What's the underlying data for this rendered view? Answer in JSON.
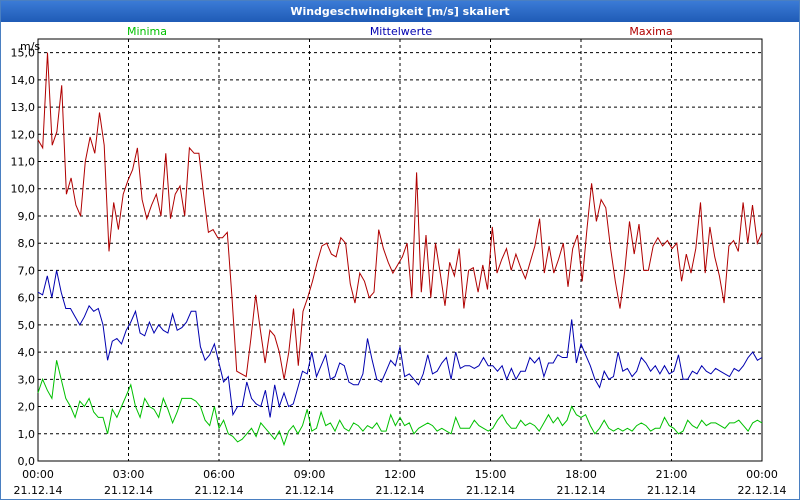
{
  "window": {
    "title": "Windgeschwindigkeit [m/s] skaliert"
  },
  "colors": {
    "minima": "#00c000",
    "mittelwerte": "#0000b0",
    "maxima": "#b00000",
    "grid": "#000000",
    "title_bg": "#2a66c4"
  },
  "chart_data": {
    "type": "line",
    "title": "Windgeschwindigkeit [m/s] skaliert",
    "ylabel": "m/s",
    "ylim": [
      0,
      15.5
    ],
    "y_ticks": [
      "0,0",
      "1,0",
      "2,0",
      "3,0",
      "4,0",
      "5,0",
      "6,0",
      "7,0",
      "8,0",
      "9,0",
      "10,0",
      "11,0",
      "12,0",
      "13,0",
      "14,0",
      "15,0"
    ],
    "xlim": [
      0,
      24
    ],
    "x_ticks": [
      {
        "time": "00:00",
        "date": "21.12.14",
        "h": 0
      },
      {
        "time": "03:00",
        "date": "21.12.14",
        "h": 3
      },
      {
        "time": "06:00",
        "date": "21.12.14",
        "h": 6
      },
      {
        "time": "09:00",
        "date": "21.12.14",
        "h": 9
      },
      {
        "time": "12:00",
        "date": "21.12.14",
        "h": 12
      },
      {
        "time": "15:00",
        "date": "21.12.14",
        "h": 15
      },
      {
        "time": "18:00",
        "date": "21.12.14",
        "h": 18
      },
      {
        "time": "21:00",
        "date": "21.12.14",
        "h": 21
      },
      {
        "time": "00:00",
        "date": "22.12.14",
        "h": 24
      }
    ],
    "legend": [
      "Minima",
      "Mittelwerte",
      "Maxima"
    ],
    "series": [
      {
        "name": "Maxima",
        "values": [
          11.8,
          11.5,
          15.0,
          11.6,
          12.1,
          13.8,
          9.8,
          10.4,
          9.4,
          9.0,
          11.0,
          11.9,
          11.3,
          12.8,
          11.6,
          7.7,
          9.5,
          8.5,
          9.8,
          10.3,
          10.7,
          11.5,
          9.6,
          8.9,
          9.4,
          9.8,
          9.0,
          11.3,
          8.9,
          9.8,
          10.1,
          9.0,
          11.5,
          11.3,
          11.3,
          9.8,
          8.4,
          8.5,
          8.2,
          8.2,
          8.4,
          6.0,
          3.3,
          3.2,
          3.1,
          4.5,
          6.1,
          4.8,
          3.6,
          4.8,
          4.6,
          4.0,
          3.0,
          4.0,
          5.6,
          3.5,
          5.5,
          6.0,
          6.6,
          7.3,
          7.9,
          8.0,
          7.6,
          7.5,
          8.2,
          8.0,
          6.5,
          5.8,
          6.9,
          6.6,
          6.0,
          6.2,
          8.5,
          7.8,
          7.3,
          6.9,
          7.2,
          7.5,
          8.0,
          6.0,
          10.6,
          6.2,
          8.3,
          6.0,
          8.0,
          6.9,
          5.7,
          7.3,
          6.8,
          7.8,
          5.6,
          7.0,
          7.1,
          6.2,
          7.2,
          6.3,
          8.6,
          6.9,
          7.4,
          7.8,
          7.0,
          7.6,
          7.1,
          6.7,
          7.3,
          7.9,
          8.9,
          6.9,
          7.9,
          6.9,
          7.4,
          8.0,
          6.4,
          7.8,
          8.3,
          6.6,
          8.5,
          10.2,
          8.8,
          9.6,
          9.3,
          7.8,
          6.6,
          5.6,
          7.0,
          8.8,
          7.6,
          8.7,
          7.0,
          7.0,
          7.9,
          8.2,
          7.9,
          8.1,
          7.8,
          8.0,
          6.6,
          7.6,
          6.9,
          7.8,
          9.5,
          6.9,
          8.6,
          7.5,
          6.8,
          5.8,
          7.9,
          8.1,
          7.7,
          9.5,
          8.0,
          9.4,
          8.0,
          8.4
        ]
      },
      {
        "name": "Mittelwerte",
        "values": [
          6.2,
          6.1,
          6.8,
          6.0,
          7.0,
          6.2,
          5.6,
          5.6,
          5.3,
          5.0,
          5.3,
          5.7,
          5.5,
          5.6,
          5.0,
          3.7,
          4.4,
          4.5,
          4.3,
          4.8,
          5.1,
          5.5,
          4.7,
          4.6,
          5.1,
          4.7,
          5.0,
          4.8,
          4.7,
          5.4,
          4.8,
          4.9,
          5.1,
          5.5,
          5.5,
          4.2,
          3.7,
          3.9,
          4.3,
          3.6,
          2.9,
          3.1,
          1.7,
          2.0,
          2.0,
          2.9,
          2.3,
          2.1,
          2.0,
          2.6,
          1.6,
          2.8,
          2.0,
          2.5,
          2.0,
          2.1,
          2.7,
          3.3,
          3.2,
          4.0,
          3.1,
          3.5,
          3.9,
          3.0,
          3.1,
          3.6,
          3.5,
          2.9,
          2.8,
          2.8,
          3.2,
          4.5,
          3.7,
          3.0,
          2.9,
          3.3,
          3.7,
          3.5,
          4.2,
          3.1,
          3.2,
          3.0,
          2.8,
          3.2,
          3.9,
          3.2,
          3.3,
          3.6,
          3.8,
          3.0,
          4.0,
          3.4,
          3.5,
          3.5,
          3.4,
          3.5,
          3.8,
          3.5,
          3.5,
          3.3,
          3.5,
          3.0,
          3.4,
          3.0,
          3.3,
          3.3,
          3.8,
          3.6,
          3.8,
          3.1,
          3.6,
          3.6,
          3.9,
          3.8,
          3.8,
          5.2,
          3.6,
          4.3,
          3.9,
          3.5,
          3.0,
          2.7,
          3.3,
          3.0,
          3.1,
          4.0,
          3.3,
          3.4,
          3.1,
          3.3,
          3.8,
          3.6,
          3.3,
          3.5,
          3.2,
          3.5,
          3.2,
          3.3,
          3.9,
          3.0,
          3.0,
          3.3,
          3.2,
          3.5,
          3.3,
          3.2,
          3.4,
          3.3,
          3.2,
          3.1,
          3.4,
          3.3,
          3.5,
          3.8,
          4.0,
          3.7,
          3.8
        ]
      },
      {
        "name": "Minima",
        "values": [
          2.5,
          3.0,
          2.6,
          2.3,
          3.7,
          3.0,
          2.3,
          2.0,
          1.6,
          2.2,
          2.0,
          2.3,
          1.8,
          1.6,
          1.6,
          1.0,
          1.9,
          1.6,
          2.0,
          2.4,
          2.8,
          2.0,
          1.6,
          2.3,
          2.0,
          1.9,
          1.6,
          2.3,
          1.9,
          1.4,
          1.8,
          2.3,
          2.3,
          2.3,
          2.2,
          2.0,
          1.5,
          1.3,
          2.0,
          1.2,
          1.5,
          1.0,
          0.9,
          0.7,
          0.8,
          1.0,
          1.2,
          0.9,
          1.4,
          1.2,
          1.0,
          0.8,
          1.1,
          0.6,
          1.1,
          1.3,
          1.0,
          1.3,
          1.9,
          1.1,
          1.2,
          1.8,
          1.3,
          1.4,
          1.1,
          1.5,
          1.2,
          1.1,
          1.4,
          1.3,
          1.1,
          1.3,
          1.2,
          1.4,
          1.1,
          1.1,
          1.7,
          1.3,
          1.6,
          1.3,
          1.4,
          1.0,
          1.2,
          1.3,
          1.4,
          1.3,
          1.1,
          1.2,
          1.1,
          1.0,
          1.6,
          1.2,
          1.2,
          1.2,
          1.5,
          1.3,
          1.2,
          1.1,
          1.2,
          1.5,
          1.7,
          1.4,
          1.2,
          1.2,
          1.5,
          1.3,
          1.4,
          1.3,
          1.1,
          1.4,
          1.7,
          1.4,
          1.6,
          1.3,
          1.5,
          2.0,
          1.7,
          1.6,
          1.7,
          1.3,
          1.0,
          1.2,
          1.5,
          1.2,
          1.1,
          1.2,
          1.1,
          1.2,
          1.1,
          1.3,
          1.4,
          1.3,
          1.1,
          1.2,
          1.2,
          1.6,
          1.3,
          1.2,
          1.0,
          1.1,
          1.5,
          1.3,
          1.2,
          1.5,
          1.3,
          1.4,
          1.4,
          1.3,
          1.2,
          1.4,
          1.4,
          1.5,
          1.3,
          1.1,
          1.4,
          1.5,
          1.4
        ]
      }
    ]
  }
}
